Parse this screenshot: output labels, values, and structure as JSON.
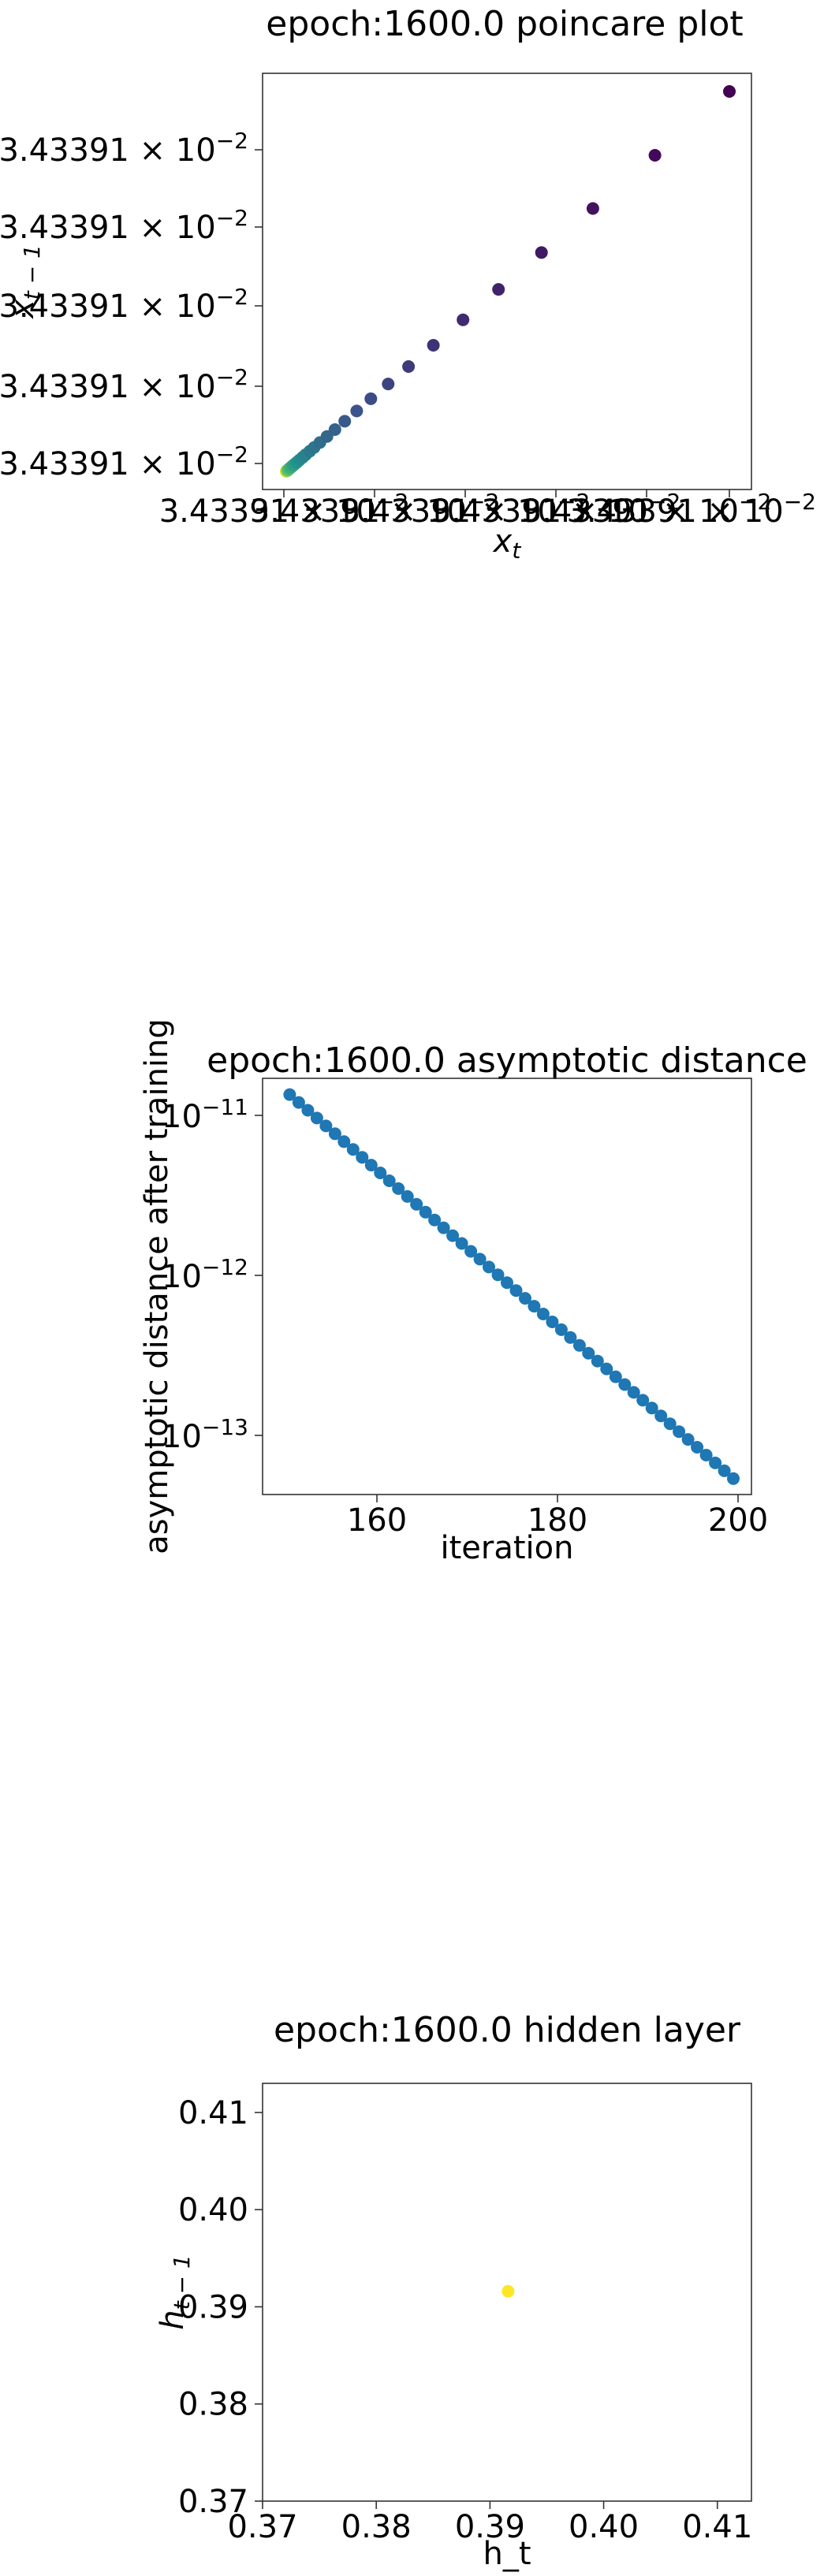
{
  "chart_data": [
    {
      "type": "scatter",
      "title": "epoch:1600.0 poincare plot",
      "xlabel": "x_t",
      "ylabel": "x_{t-1}",
      "x_tick_labels": [
        "3.43391 × 10^-2",
        "3.43391 × 10^-2",
        "3.43391 × 10^-2",
        "3.43391 × 10^-2",
        "3.43391 × 10^-2",
        "3.43391 × 10^-2"
      ],
      "y_tick_labels": [
        "3.43391 × 10^-2",
        "3.43391 × 10^-2",
        "3.43391 × 10^-2",
        "3.43391 × 10^-2",
        "3.43391 × 10^-2"
      ],
      "colormap": "viridis",
      "grid": false,
      "note_points": "points converge along the diagonal toward the fixed point; color goes from purple (early) to yellow (late)",
      "x": [
        1.0,
        0.832,
        0.692,
        0.576,
        0.479,
        0.399,
        0.332,
        0.276,
        0.23,
        0.191,
        0.159,
        0.132,
        0.11,
        0.092,
        0.076,
        0.063,
        0.053,
        0.044,
        0.037,
        0.03,
        0.025,
        0.021,
        0.017,
        0.015,
        0.012,
        0.01,
        0.008,
        0.007,
        0.006,
        0.005,
        0.004,
        0.003,
        0.003,
        0.002,
        0.002,
        0.001,
        0.001,
        0.001,
        0.001,
        0.0
      ],
      "y": [
        1.0,
        0.832,
        0.692,
        0.576,
        0.479,
        0.399,
        0.332,
        0.276,
        0.23,
        0.191,
        0.159,
        0.132,
        0.11,
        0.092,
        0.076,
        0.063,
        0.053,
        0.044,
        0.037,
        0.03,
        0.025,
        0.021,
        0.017,
        0.015,
        0.012,
        0.01,
        0.008,
        0.007,
        0.006,
        0.005,
        0.004,
        0.003,
        0.003,
        0.002,
        0.002,
        0.001,
        0.001,
        0.001,
        0.001,
        0.0
      ]
    },
    {
      "type": "scatter",
      "title": "epoch:1600.0 asymptotic distance",
      "xlabel": "iteration",
      "ylabel": "asymptotic distance after training",
      "yscale": "log",
      "xlim": [
        147,
        201
      ],
      "x_ticks": [
        160,
        180,
        200
      ],
      "y_ticks": [
        "10^-11",
        "10^-12",
        "10^-13"
      ],
      "color": "#1f77b4",
      "grid": false,
      "x": [
        150,
        151,
        152,
        153,
        154,
        155,
        156,
        157,
        158,
        159,
        160,
        161,
        162,
        163,
        164,
        165,
        166,
        167,
        168,
        169,
        170,
        171,
        172,
        173,
        174,
        175,
        176,
        177,
        178,
        179,
        180,
        181,
        182,
        183,
        184,
        185,
        186,
        187,
        188,
        189,
        190,
        191,
        192,
        193,
        194,
        195,
        196,
        197,
        198,
        199
      ],
      "y_exponent_start": -10.87,
      "y_exponent_end": -13.27
    },
    {
      "type": "scatter",
      "title": "epoch:1600.0 hidden layer",
      "xlabel": "h_t",
      "ylabel": "h_{t-1}",
      "xlim": [
        0.37,
        0.413
      ],
      "ylim": [
        0.37,
        0.413
      ],
      "x_ticks": [
        "0.37",
        "0.38",
        "0.39",
        "0.40",
        "0.41"
      ],
      "y_ticks": [
        "0.37",
        "0.38",
        "0.39",
        "0.40",
        "0.41"
      ],
      "color": "#fde725",
      "grid": false,
      "x": [
        0.3916
      ],
      "y": [
        0.3916
      ]
    }
  ]
}
